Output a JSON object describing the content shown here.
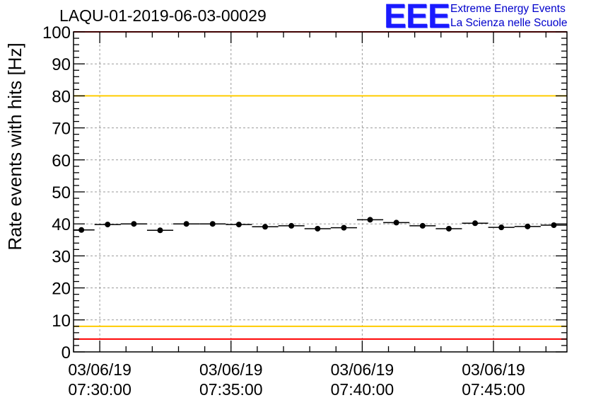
{
  "header": {
    "title": "LAQU-01-2019-06-03-00029",
    "logo_text": "EEE",
    "logo_line1": "Extreme Energy Events",
    "logo_line2": "La Scienza nelle Scuole"
  },
  "colors": {
    "accent_blue": "#1a1aff",
    "limit_red": "#ff0000",
    "limit_yellow": "#ffcc00",
    "marker": "#000000"
  },
  "chart_data": {
    "type": "scatter",
    "title": "LAQU-01-2019-06-03-00029",
    "ylabel": "Rate events with hits [Hz]",
    "xlabel": "",
    "ylim": [
      0,
      100
    ],
    "y_ticks": [
      0,
      10,
      20,
      30,
      40,
      50,
      60,
      70,
      80,
      90,
      100
    ],
    "xlim_minutes": [
      -1.0,
      17.8
    ],
    "x_ticks": [
      {
        "minute": 0,
        "date": "03/06/19",
        "time": "07:30:00"
      },
      {
        "minute": 5,
        "date": "03/06/19",
        "time": "07:35:00"
      },
      {
        "minute": 10,
        "date": "03/06/19",
        "time": "07:40:00"
      },
      {
        "minute": 15,
        "date": "03/06/19",
        "time": "07:45:00"
      }
    ],
    "bin_width_minutes": 1.0,
    "grid": true,
    "series": [
      {
        "name": "Rate events with hits",
        "x_minutes": [
          -0.7,
          0.3,
          1.3,
          2.3,
          3.3,
          4.3,
          5.3,
          6.3,
          7.3,
          8.3,
          9.3,
          10.3,
          11.3,
          12.3,
          13.3,
          14.3,
          15.3,
          16.3,
          17.3
        ],
        "values": [
          38.1,
          39.8,
          40.0,
          38.0,
          40.0,
          40.0,
          39.8,
          39.1,
          39.4,
          38.5,
          38.8,
          41.3,
          40.4,
          39.4,
          38.5,
          40.2,
          38.9,
          39.2,
          39.6
        ]
      }
    ],
    "reference_lines": [
      {
        "name": "upper-red-limit",
        "value": 100,
        "color": "#ff0000"
      },
      {
        "name": "upper-yellow-limit",
        "value": 80,
        "color": "#ffcc00"
      },
      {
        "name": "lower-yellow-limit",
        "value": 8,
        "color": "#ffcc00"
      },
      {
        "name": "lower-red-limit",
        "value": 4,
        "color": "#ff0000"
      }
    ]
  }
}
